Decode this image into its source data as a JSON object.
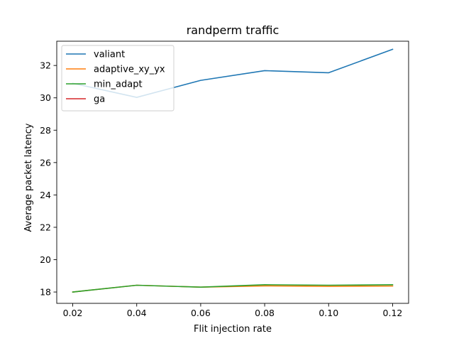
{
  "chart_data": {
    "type": "line",
    "title": "randperm traffic",
    "xlabel": "Flit injection rate",
    "ylabel": "Average packet latency",
    "x": [
      0.02,
      0.04,
      0.06,
      0.08,
      0.1,
      0.12
    ],
    "xlim": [
      0.015,
      0.125
    ],
    "ylim": [
      17.3,
      33.5
    ],
    "x_ticks": [
      0.02,
      0.04,
      0.06,
      0.08,
      0.1,
      0.12
    ],
    "x_tick_labels": [
      "0.02",
      "0.04",
      "0.06",
      "0.08",
      "0.10",
      "0.12"
    ],
    "y_ticks": [
      18,
      20,
      22,
      24,
      26,
      28,
      30,
      32
    ],
    "y_tick_labels": [
      "18",
      "20",
      "22",
      "24",
      "26",
      "28",
      "30",
      "32"
    ],
    "grid": false,
    "legend_position": "top-left",
    "series": [
      {
        "name": "valiant",
        "color": "#1f77b4",
        "values": [
          30.9,
          30.03,
          31.08,
          31.68,
          31.55,
          33.0
        ]
      },
      {
        "name": "adaptive_xy_yx",
        "color": "#ff7f0e",
        "values": [
          18.0,
          18.42,
          18.3,
          18.38,
          18.35,
          18.37
        ]
      },
      {
        "name": "min_adapt",
        "color": "#2ca02c",
        "values": [
          18.0,
          18.42,
          18.3,
          18.45,
          18.42,
          18.45
        ]
      },
      {
        "name": "ga",
        "color": "#d62728",
        "values": [
          null,
          null,
          null,
          null,
          null,
          null
        ]
      }
    ]
  }
}
